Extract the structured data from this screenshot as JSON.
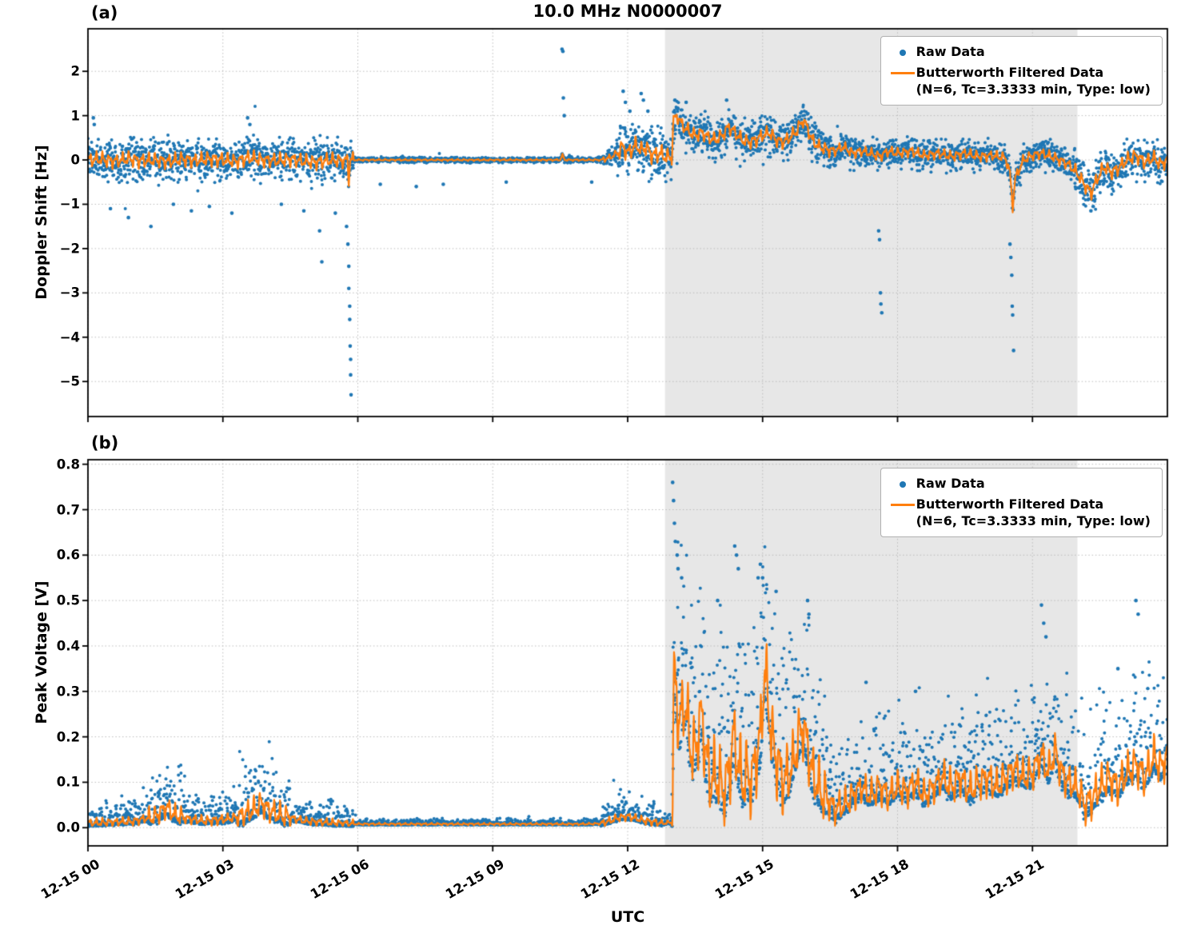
{
  "figure": {
    "title": "10.0 MHz N0000007",
    "xlabel": "UTC",
    "panel_a_label": "(a)",
    "panel_b_label": "(b)",
    "colors": {
      "raw": "#1f77b4",
      "filtered": "#ff7f0e",
      "shade": "#e7e7e7",
      "grid": "#bbbbbb",
      "spine": "#000000"
    },
    "legend": {
      "raw": "Raw Data",
      "filtered_line1": "Butterworth Filtered Data",
      "filtered_line2": "(N=6, Tc=3.3333 min, Type: low)"
    }
  },
  "chart_data": [
    {
      "type": "scatter",
      "panel": "(a)",
      "title": "10.0 MHz N0000007",
      "ylabel": "Doppler Shift [Hz]",
      "xlabel": "UTC",
      "x_unit": "hours after 12-15 00:00 UTC",
      "xlim": [
        0,
        24
      ],
      "ylim": [
        -5.79,
        2.96
      ],
      "xticks": [
        0,
        3,
        6,
        9,
        12,
        15,
        18,
        21
      ],
      "ytick_values": [
        2,
        1,
        0,
        -1,
        -2,
        -3,
        -4,
        -5
      ],
      "ytick_labels": [
        "2",
        "1",
        "0",
        "−1",
        "−2",
        "−3",
        "−4",
        "−5"
      ],
      "shaded_region": [
        12.83,
        22.0
      ],
      "grid": "dotted",
      "legend_position": "upper right",
      "series_names": [
        "Raw Data",
        "Butterworth Filtered Data (N=6, Tc=3.3333 min, Type: low)"
      ],
      "filtered_points": [
        [
          0,
          0.0
        ],
        [
          0.3,
          0.02
        ],
        [
          0.6,
          -0.03
        ],
        [
          0.9,
          0.03
        ],
        [
          1.2,
          -0.02
        ],
        [
          1.5,
          0.0
        ],
        [
          1.8,
          -0.04
        ],
        [
          2.1,
          0.02
        ],
        [
          2.4,
          -0.02
        ],
        [
          2.7,
          0.03
        ],
        [
          3.0,
          0.0
        ],
        [
          3.3,
          -0.03
        ],
        [
          3.6,
          0.05
        ],
        [
          3.9,
          0.0
        ],
        [
          4.2,
          -0.02
        ],
        [
          4.5,
          0.02
        ],
        [
          4.8,
          -0.03
        ],
        [
          5.1,
          -0.05
        ],
        [
          5.4,
          0.0
        ],
        [
          5.7,
          -0.02
        ],
        [
          5.77,
          0.0
        ],
        [
          5.8,
          -0.45
        ],
        [
          5.83,
          0.0
        ],
        [
          6.2,
          0.0
        ],
        [
          7.0,
          0.0
        ],
        [
          8.0,
          0.0
        ],
        [
          9.0,
          0.0
        ],
        [
          10.0,
          0.0
        ],
        [
          10.5,
          0.0
        ],
        [
          10.55,
          0.12
        ],
        [
          10.6,
          0.0
        ],
        [
          11.0,
          0.0
        ],
        [
          11.4,
          0.0
        ],
        [
          11.6,
          0.05
        ],
        [
          11.75,
          0.15
        ],
        [
          11.9,
          0.3
        ],
        [
          12.0,
          0.15
        ],
        [
          12.1,
          0.25
        ],
        [
          12.2,
          0.35
        ],
        [
          12.3,
          0.2
        ],
        [
          12.4,
          0.3
        ],
        [
          12.5,
          0.15
        ],
        [
          12.6,
          0.1
        ],
        [
          12.7,
          0.15
        ],
        [
          12.8,
          0.1
        ],
        [
          12.9,
          0.05
        ],
        [
          12.98,
          0.08
        ],
        [
          13.02,
          0.9
        ],
        [
          13.1,
          1.0
        ],
        [
          13.2,
          0.8
        ],
        [
          13.35,
          0.65
        ],
        [
          13.5,
          0.55
        ],
        [
          13.65,
          0.62
        ],
        [
          13.8,
          0.5
        ],
        [
          13.95,
          0.45
        ],
        [
          14.1,
          0.55
        ],
        [
          14.25,
          0.75
        ],
        [
          14.4,
          0.6
        ],
        [
          14.55,
          0.45
        ],
        [
          14.7,
          0.4
        ],
        [
          14.85,
          0.45
        ],
        [
          15.0,
          0.55
        ],
        [
          15.15,
          0.62
        ],
        [
          15.3,
          0.45
        ],
        [
          15.45,
          0.4
        ],
        [
          15.6,
          0.5
        ],
        [
          15.75,
          0.65
        ],
        [
          15.9,
          0.9
        ],
        [
          16.0,
          0.72
        ],
        [
          16.1,
          0.45
        ],
        [
          16.25,
          0.3
        ],
        [
          16.4,
          0.25
        ],
        [
          16.6,
          0.2
        ],
        [
          16.8,
          0.3
        ],
        [
          17.0,
          0.15
        ],
        [
          17.2,
          0.2
        ],
        [
          17.4,
          0.15
        ],
        [
          17.6,
          0.08
        ],
        [
          17.8,
          0.2
        ],
        [
          18.0,
          0.15
        ],
        [
          18.3,
          0.2
        ],
        [
          18.6,
          0.1
        ],
        [
          18.9,
          0.15
        ],
        [
          19.2,
          0.08
        ],
        [
          19.5,
          0.15
        ],
        [
          19.8,
          0.08
        ],
        [
          20.1,
          0.1
        ],
        [
          20.4,
          0.05
        ],
        [
          20.5,
          -0.3
        ],
        [
          20.56,
          -1.05
        ],
        [
          20.62,
          -0.4
        ],
        [
          20.8,
          0.0
        ],
        [
          21.0,
          0.1
        ],
        [
          21.2,
          0.15
        ],
        [
          21.5,
          0.05
        ],
        [
          21.8,
          -0.1
        ],
        [
          22.0,
          -0.3
        ],
        [
          22.15,
          -0.55
        ],
        [
          22.3,
          -0.75
        ],
        [
          22.45,
          -0.4
        ],
        [
          22.6,
          -0.15
        ],
        [
          22.75,
          -0.28
        ],
        [
          22.9,
          -0.2
        ],
        [
          23.1,
          0.0
        ],
        [
          23.3,
          0.1
        ],
        [
          23.5,
          -0.05
        ],
        [
          23.7,
          0.05
        ],
        [
          23.85,
          -0.1
        ],
        [
          24,
          0.0
        ]
      ],
      "noise_envelope": [
        [
          0,
          5.9,
          0.28
        ],
        [
          5.9,
          11.45,
          0.035
        ],
        [
          11.45,
          11.75,
          0.12
        ],
        [
          11.75,
          12.98,
          0.34
        ],
        [
          12.98,
          16.5,
          0.26
        ],
        [
          16.5,
          21.9,
          0.2
        ],
        [
          21.9,
          24,
          0.27
        ]
      ],
      "outliers": [
        [
          0.12,
          0.95
        ],
        [
          0.14,
          0.8
        ],
        [
          0.5,
          -1.1
        ],
        [
          0.9,
          -1.3
        ],
        [
          1.4,
          -1.5
        ],
        [
          1.9,
          -1.0
        ],
        [
          2.3,
          -1.15
        ],
        [
          2.7,
          -1.05
        ],
        [
          3.2,
          -1.2
        ],
        [
          3.55,
          0.95
        ],
        [
          3.6,
          0.8
        ],
        [
          4.3,
          -1.0
        ],
        [
          4.8,
          -1.15
        ],
        [
          5.15,
          -1.6
        ],
        [
          5.2,
          -2.3
        ],
        [
          5.5,
          -1.2
        ],
        [
          5.75,
          -1.5
        ],
        [
          5.78,
          -1.9
        ],
        [
          5.8,
          -2.4
        ],
        [
          5.8,
          -2.9
        ],
        [
          5.82,
          -3.3
        ],
        [
          5.82,
          -3.6
        ],
        [
          5.83,
          -4.2
        ],
        [
          5.84,
          -4.5
        ],
        [
          5.84,
          -4.85
        ],
        [
          5.85,
          -5.3
        ],
        [
          6.5,
          -0.55
        ],
        [
          7.3,
          -0.6
        ],
        [
          7.9,
          -0.55
        ],
        [
          9.3,
          -0.5
        ],
        [
          10.54,
          2.5
        ],
        [
          10.56,
          2.45
        ],
        [
          10.57,
          1.4
        ],
        [
          10.59,
          1.0
        ],
        [
          11.2,
          -0.5
        ],
        [
          11.9,
          1.55
        ],
        [
          11.95,
          1.3
        ],
        [
          12.05,
          1.1
        ],
        [
          12.3,
          1.5
        ],
        [
          12.35,
          1.35
        ],
        [
          12.45,
          1.1
        ],
        [
          13.05,
          1.35
        ],
        [
          13.3,
          1.3
        ],
        [
          14.2,
          1.35
        ],
        [
          17.58,
          -1.6
        ],
        [
          17.6,
          -1.8
        ],
        [
          17.62,
          -3.0
        ],
        [
          17.63,
          -3.25
        ],
        [
          17.65,
          -3.45
        ],
        [
          20.5,
          -1.9
        ],
        [
          20.52,
          -2.2
        ],
        [
          20.54,
          -2.6
        ],
        [
          20.55,
          -3.3
        ],
        [
          20.56,
          -3.5
        ],
        [
          20.58,
          -4.3
        ],
        [
          22.3,
          -1.15
        ],
        [
          22.35,
          -1.05
        ]
      ]
    },
    {
      "type": "scatter",
      "panel": "(b)",
      "ylabel": "Peak Voltage [V]",
      "xlabel": "UTC",
      "x_unit": "hours after 12-15 00:00 UTC",
      "xlim": [
        0,
        24
      ],
      "ylim": [
        -0.04,
        0.81
      ],
      "xticks": [
        0,
        3,
        6,
        9,
        12,
        15,
        18,
        21
      ],
      "xtick_labels": [
        "12-15 00",
        "12-15 03",
        "12-15 06",
        "12-15 09",
        "12-15 12",
        "12-15 15",
        "12-15 18",
        "12-15 21"
      ],
      "ytick_values": [
        0.0,
        0.1,
        0.2,
        0.3,
        0.4,
        0.5,
        0.6,
        0.7,
        0.8
      ],
      "ytick_labels": [
        "0.0",
        "0.1",
        "0.2",
        "0.3",
        "0.4",
        "0.5",
        "0.6",
        "0.7",
        "0.8"
      ],
      "shaded_region": [
        12.83,
        22.0
      ],
      "grid": "dotted",
      "legend_position": "upper right",
      "series_names": [
        "Raw Data",
        "Butterworth Filtered Data (N=6, Tc=3.3333 min, Type: low)"
      ],
      "filtered_points": [
        [
          0,
          0.01
        ],
        [
          0.5,
          0.012
        ],
        [
          1.0,
          0.014
        ],
        [
          1.5,
          0.025
        ],
        [
          1.75,
          0.045
        ],
        [
          1.9,
          0.03
        ],
        [
          2.2,
          0.02
        ],
        [
          2.6,
          0.015
        ],
        [
          3.0,
          0.018
        ],
        [
          3.4,
          0.025
        ],
        [
          3.7,
          0.04
        ],
        [
          3.85,
          0.055
        ],
        [
          4.0,
          0.04
        ],
        [
          4.2,
          0.03
        ],
        [
          4.5,
          0.022
        ],
        [
          4.8,
          0.015
        ],
        [
          5.2,
          0.012
        ],
        [
          5.6,
          0.01
        ],
        [
          6.0,
          0.008
        ],
        [
          7.0,
          0.008
        ],
        [
          8.0,
          0.008
        ],
        [
          9.0,
          0.008
        ],
        [
          10.0,
          0.008
        ],
        [
          11.0,
          0.008
        ],
        [
          11.4,
          0.009
        ],
        [
          11.6,
          0.015
        ],
        [
          11.8,
          0.022
        ],
        [
          12.0,
          0.025
        ],
        [
          12.2,
          0.02
        ],
        [
          12.4,
          0.015
        ],
        [
          12.6,
          0.012
        ],
        [
          12.8,
          0.01
        ],
        [
          12.98,
          0.012
        ],
        [
          13.0,
          0.05
        ],
        [
          13.03,
          0.35
        ],
        [
          13.08,
          0.3
        ],
        [
          13.15,
          0.22
        ],
        [
          13.25,
          0.28
        ],
        [
          13.35,
          0.22
        ],
        [
          13.45,
          0.15
        ],
        [
          13.55,
          0.2
        ],
        [
          13.65,
          0.25
        ],
        [
          13.75,
          0.15
        ],
        [
          13.85,
          0.1
        ],
        [
          13.95,
          0.12
        ],
        [
          14.05,
          0.1
        ],
        [
          14.15,
          0.08
        ],
        [
          14.25,
          0.12
        ],
        [
          14.35,
          0.2
        ],
        [
          14.45,
          0.15
        ],
        [
          14.55,
          0.1
        ],
        [
          14.65,
          0.12
        ],
        [
          14.75,
          0.1
        ],
        [
          14.85,
          0.15
        ],
        [
          14.95,
          0.2
        ],
        [
          15.05,
          0.35
        ],
        [
          15.1,
          0.3
        ],
        [
          15.2,
          0.2
        ],
        [
          15.3,
          0.15
        ],
        [
          15.4,
          0.12
        ],
        [
          15.5,
          0.1
        ],
        [
          15.6,
          0.12
        ],
        [
          15.7,
          0.15
        ],
        [
          15.8,
          0.2
        ],
        [
          15.9,
          0.22
        ],
        [
          16.0,
          0.18
        ],
        [
          16.1,
          0.12
        ],
        [
          16.2,
          0.1
        ],
        [
          16.3,
          0.08
        ],
        [
          16.45,
          0.06
        ],
        [
          16.6,
          0.04
        ],
        [
          16.8,
          0.05
        ],
        [
          17.0,
          0.07
        ],
        [
          17.2,
          0.09
        ],
        [
          17.4,
          0.07
        ],
        [
          17.6,
          0.09
        ],
        [
          17.8,
          0.07
        ],
        [
          18.0,
          0.09
        ],
        [
          18.2,
          0.08
        ],
        [
          18.4,
          0.1
        ],
        [
          18.6,
          0.07
        ],
        [
          18.8,
          0.09
        ],
        [
          19.0,
          0.11
        ],
        [
          19.2,
          0.09
        ],
        [
          19.4,
          0.11
        ],
        [
          19.6,
          0.08
        ],
        [
          19.8,
          0.1
        ],
        [
          20.0,
          0.11
        ],
        [
          20.2,
          0.09
        ],
        [
          20.4,
          0.11
        ],
        [
          20.6,
          0.13
        ],
        [
          20.8,
          0.11
        ],
        [
          21.0,
          0.12
        ],
        [
          21.2,
          0.16
        ],
        [
          21.35,
          0.12
        ],
        [
          21.5,
          0.17
        ],
        [
          21.65,
          0.12
        ],
        [
          21.8,
          0.1
        ],
        [
          22.0,
          0.09
        ],
        [
          22.15,
          0.05
        ],
        [
          22.3,
          0.06
        ],
        [
          22.5,
          0.09
        ],
        [
          22.7,
          0.11
        ],
        [
          22.9,
          0.09
        ],
        [
          23.1,
          0.12
        ],
        [
          23.3,
          0.14
        ],
        [
          23.5,
          0.11
        ],
        [
          23.7,
          0.16
        ],
        [
          23.85,
          0.13
        ],
        [
          24,
          0.16
        ]
      ],
      "noise_envelope": [
        [
          0,
          1.35,
          0.02
        ],
        [
          1.35,
          2.15,
          0.045
        ],
        [
          2.15,
          3.3,
          0.022
        ],
        [
          3.3,
          4.5,
          0.055
        ],
        [
          4.5,
          5.9,
          0.018
        ],
        [
          5.9,
          11.4,
          0.005
        ],
        [
          11.4,
          12.75,
          0.018
        ],
        [
          12.75,
          12.98,
          0.01
        ],
        [
          12.98,
          15.55,
          0.16
        ],
        [
          15.55,
          16.45,
          0.13
        ],
        [
          16.45,
          19.0,
          0.07
        ],
        [
          19.0,
          22.0,
          0.078
        ],
        [
          22.0,
          24.0,
          0.085
        ]
      ],
      "outliers": [
        [
          13.0,
          0.76
        ],
        [
          13.02,
          0.72
        ],
        [
          13.04,
          0.67
        ],
        [
          13.06,
          0.63
        ],
        [
          13.1,
          0.6
        ],
        [
          13.12,
          0.57
        ],
        [
          13.2,
          0.55
        ],
        [
          14.0,
          0.5
        ],
        [
          14.38,
          0.62
        ],
        [
          14.42,
          0.6
        ],
        [
          14.46,
          0.57
        ],
        [
          14.9,
          0.55
        ],
        [
          14.95,
          0.58
        ],
        [
          15.0,
          0.55
        ],
        [
          15.3,
          0.52
        ],
        [
          16.0,
          0.5
        ],
        [
          16.03,
          0.47
        ],
        [
          17.3,
          0.32
        ],
        [
          18.4,
          0.3
        ],
        [
          21.2,
          0.49
        ],
        [
          21.25,
          0.45
        ],
        [
          21.3,
          0.42
        ],
        [
          22.9,
          0.35
        ],
        [
          23.3,
          0.5
        ],
        [
          23.35,
          0.47
        ]
      ]
    }
  ]
}
